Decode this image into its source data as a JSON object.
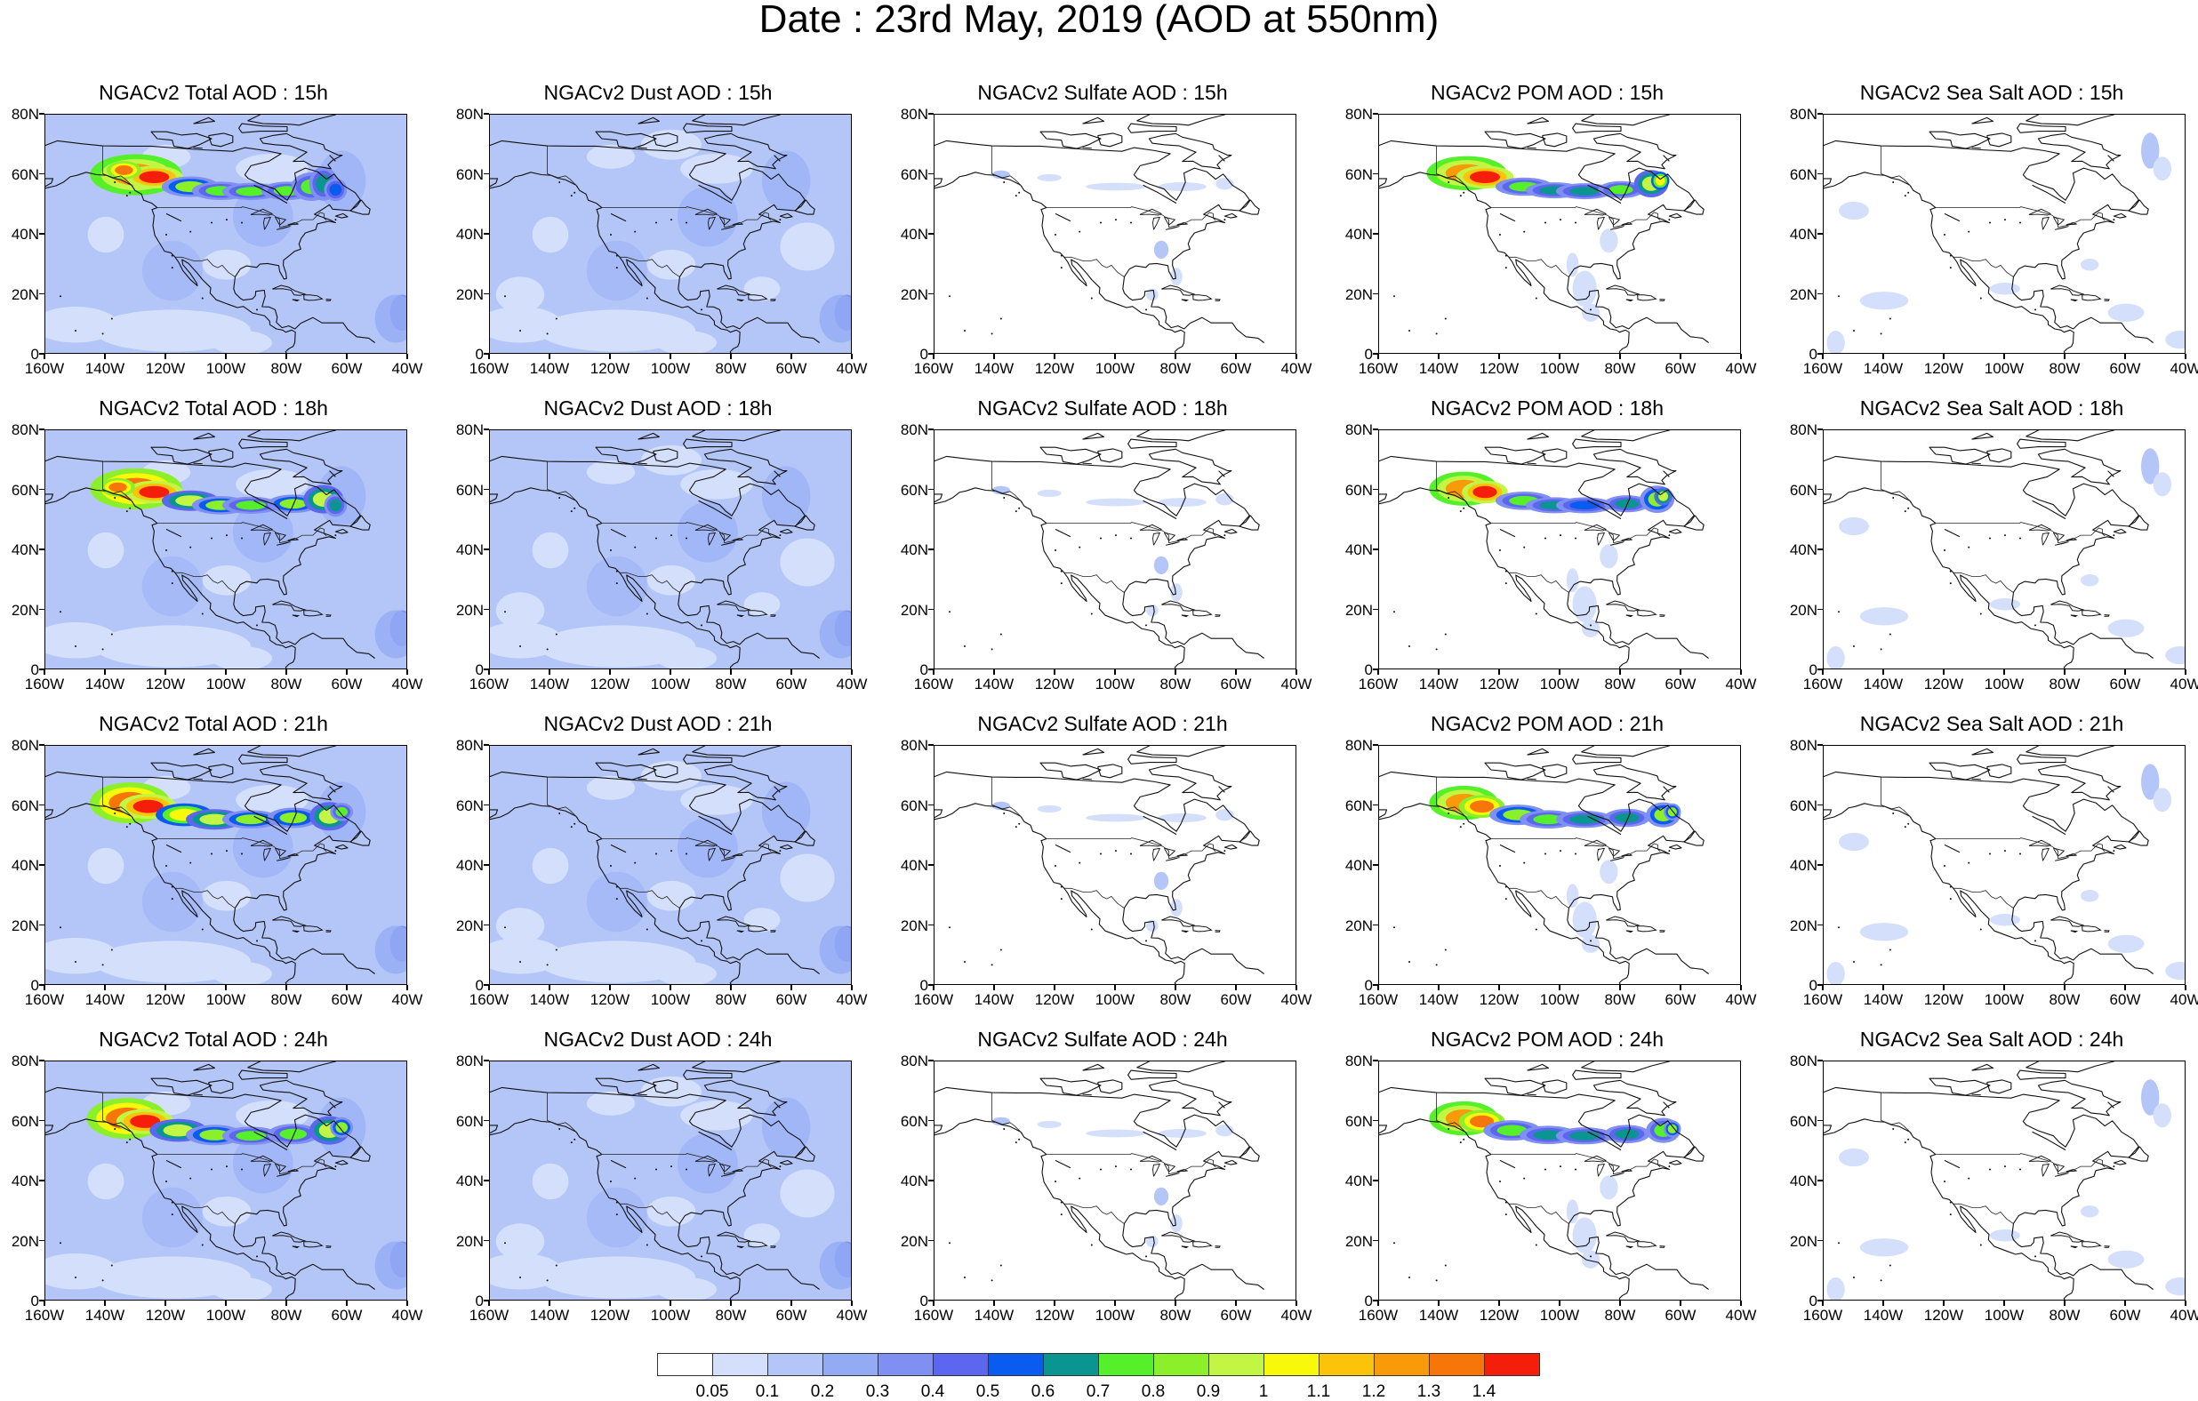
{
  "title": "Date : 23rd May, 2019 (AOD at 550nm)",
  "panels": [
    {
      "title": "NGACv2 Total AOD : 15h",
      "species": "total"
    },
    {
      "title": "NGACv2 Dust AOD : 15h",
      "species": "dust"
    },
    {
      "title": "NGACv2 Sulfate AOD : 15h",
      "species": "sulfate"
    },
    {
      "title": "NGACv2 POM AOD : 15h",
      "species": "pom"
    },
    {
      "title": "NGACv2 Sea Salt AOD : 15h",
      "species": "seasalt"
    },
    {
      "title": "NGACv2 Total AOD : 18h",
      "species": "total"
    },
    {
      "title": "NGACv2 Dust AOD : 18h",
      "species": "dust"
    },
    {
      "title": "NGACv2 Sulfate AOD : 18h",
      "species": "sulfate"
    },
    {
      "title": "NGACv2 POM AOD : 18h",
      "species": "pom"
    },
    {
      "title": "NGACv2 Sea Salt AOD : 18h",
      "species": "seasalt"
    },
    {
      "title": "NGACv2 Total AOD : 21h",
      "species": "total"
    },
    {
      "title": "NGACv2 Dust AOD : 21h",
      "species": "dust"
    },
    {
      "title": "NGACv2 Sulfate AOD : 21h",
      "species": "sulfate"
    },
    {
      "title": "NGACv2 POM AOD : 21h",
      "species": "pom"
    },
    {
      "title": "NGACv2 Sea Salt AOD : 21h",
      "species": "seasalt"
    },
    {
      "title": "NGACv2 Total AOD : 24h",
      "species": "total"
    },
    {
      "title": "NGACv2 Dust AOD : 24h",
      "species": "dust"
    },
    {
      "title": "NGACv2 Sulfate AOD : 24h",
      "species": "sulfate"
    },
    {
      "title": "NGACv2 POM AOD : 24h",
      "species": "pom"
    },
    {
      "title": "NGACv2 Sea Salt  AOD : 24h",
      "species": "seasalt"
    }
  ],
  "axes": {
    "lat_labels": [
      "80N",
      "60N",
      "40N",
      "20N",
      "0"
    ],
    "lon_labels": [
      "160W",
      "140W",
      "120W",
      "100W",
      "80W",
      "60W",
      "40W"
    ],
    "lat_values": [
      80,
      60,
      40,
      20,
      0
    ],
    "lon_values": [
      -160,
      -140,
      -120,
      -100,
      -80,
      -60,
      -40
    ]
  },
  "colorbar": {
    "labels": [
      "0.05",
      "0.1",
      "0.2",
      "0.3",
      "0.4",
      "0.5",
      "0.6",
      "0.7",
      "0.8",
      "0.9",
      "1",
      "1.1",
      "1.2",
      "1.3",
      "1.4"
    ],
    "colors": [
      "#ffffff",
      "#d4dffb",
      "#b4c6f8",
      "#93abf5",
      "#7f8ff2",
      "#5c66ee",
      "#0a5cf0",
      "#0a9590",
      "#55f029",
      "#8bf02a",
      "#c3f545",
      "#f8f80b",
      "#fbc40b",
      "#f99a0a",
      "#f7760a",
      "#f51e0a"
    ]
  }
}
